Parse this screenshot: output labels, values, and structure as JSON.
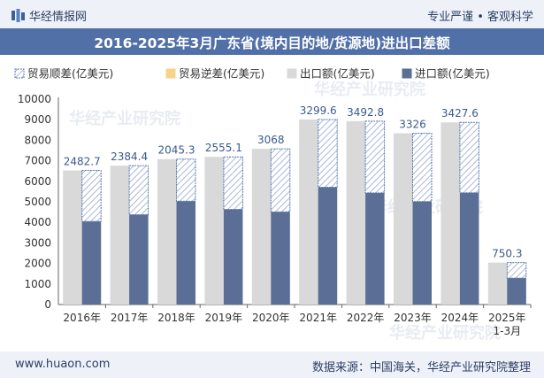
{
  "header": {
    "logo_text": "华经情报网",
    "tagline": "专业严谨 • 客观科学"
  },
  "footer": {
    "site": "www.huaon.com",
    "source": "数据来源：中国海关，华经产业研究院整理"
  },
  "watermark": "华经产业研究院",
  "colors": {
    "export": "#d9d9d9",
    "import": "#5a6e96",
    "surplus_hatch": "#a9b9d6",
    "surplus_border": "#5b78b0",
    "deficit": "#f5d48a",
    "label": "#3a5a8c",
    "title_bg": "#5270a8"
  },
  "chart_data": {
    "type": "bar",
    "title": "2016-2025年3月广东省(境内目的地/货源地)进出口差额",
    "xlabel": "",
    "ylabel": "",
    "ylim": [
      0,
      10000
    ],
    "yticks": [
      0,
      1000,
      2000,
      3000,
      4000,
      5000,
      6000,
      7000,
      8000,
      9000,
      10000
    ],
    "grid": false,
    "legend_position": "top-left",
    "categories": [
      "2016年",
      "2017年",
      "2018年",
      "2019年",
      "2020年",
      "2021年",
      "2022年",
      "2023年",
      "2024年",
      "2025年 1-3月"
    ],
    "legend": [
      "贸易顺差(亿美元)",
      "贸易逆差(亿美元)",
      "出口额(亿美元)",
      "进口额(亿美元)"
    ],
    "series": [
      {
        "name": "出口额(亿美元)",
        "values": [
          6530,
          6760,
          7080,
          7190,
          7580,
          9010,
          8930,
          8340,
          8870,
          2040
        ]
      },
      {
        "name": "进口额(亿美元)",
        "values": [
          4047.3,
          4375.6,
          5034.7,
          4634.9,
          4512,
          5710.4,
          5437.2,
          5014,
          5442.4,
          1289.7
        ]
      },
      {
        "name": "贸易顺差(亿美元)",
        "values": [
          2482.7,
          2384.4,
          2045.3,
          2555.1,
          3068,
          3299.6,
          3492.8,
          3326,
          3427.6,
          750.3
        ]
      }
    ],
    "data_labels": [
      "2482.7",
      "2384.4",
      "2045.3",
      "2555.1",
      "3068",
      "3299.6",
      "3492.8",
      "3326",
      "3427.6",
      "750.3"
    ]
  }
}
